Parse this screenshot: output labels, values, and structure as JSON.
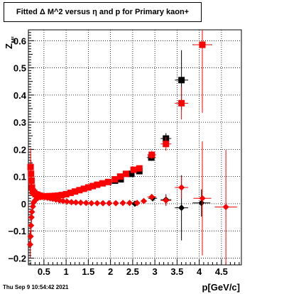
{
  "title": "Fitted Δ M^2 versus η and p for Primary kaon+",
  "timestamp": "Thu Sep  9 10:54:42 2021",
  "chart_data": {
    "type": "scatter",
    "xlabel": "p[GeV/c]",
    "ylabel": "Z_{M^{2}}",
    "xlim": [
      0.15,
      4.95
    ],
    "ylim": [
      -0.225,
      0.64
    ],
    "grid": true,
    "x_ticks": [
      0.5,
      1,
      1.5,
      2,
      2.5,
      3,
      3.5,
      4,
      4.5
    ],
    "x_tick_labels": [
      "0.5",
      "1",
      "1.5",
      "2",
      "2.5",
      "3",
      "3.5",
      "4",
      "4.5"
    ],
    "y_ticks": [
      -0.2,
      -0.1,
      0,
      0.1,
      0.2,
      0.3,
      0.4,
      0.5,
      0.6
    ],
    "y_tick_labels": [
      "−0.2",
      "−0.1",
      "0",
      "0.1",
      "0.2",
      "0.3",
      "0.4",
      "0.5",
      "0.6"
    ],
    "colors": {
      "red": "#ff0000",
      "black": "#000000"
    },
    "series": [
      {
        "color": "black",
        "marker": "square",
        "points": [
          {
            "x": 2.1,
            "y": 0.085,
            "ex": 0.05,
            "ey": 0.004
          },
          {
            "x": 2.23,
            "y": 0.09,
            "ex": 0.05,
            "ey": 0.004
          },
          {
            "x": 2.47,
            "y": 0.11,
            "ex": 0.06,
            "ey": 0.006
          },
          {
            "x": 2.65,
            "y": 0.12,
            "ex": 0.07,
            "ey": 0.008
          },
          {
            "x": 2.92,
            "y": 0.17,
            "ex": 0.1,
            "ey": 0.012
          },
          {
            "x": 3.25,
            "y": 0.24,
            "ex": 0.12,
            "ey": 0.02
          },
          {
            "x": 3.6,
            "y": 0.455,
            "ex": 0.15,
            "ey": 0.11
          },
          {
            "x": 4.07,
            "y": 0.585,
            "ex": 0.22,
            "ey": 0.04
          }
        ]
      },
      {
        "color": "red",
        "marker": "square",
        "points": [
          {
            "x": 0.2,
            "y": 0.135,
            "ex": 0.02,
            "ey": 0.07
          },
          {
            "x": 0.21,
            "y": 0.11,
            "ex": 0.02,
            "ey": 0.05
          },
          {
            "x": 0.22,
            "y": 0.085,
            "ex": 0.02,
            "ey": 0.03
          },
          {
            "x": 0.23,
            "y": 0.06,
            "ex": 0.02,
            "ey": 0.015
          },
          {
            "x": 0.25,
            "y": 0.045,
            "ex": 0.02,
            "ey": 0.01
          },
          {
            "x": 0.28,
            "y": 0.04,
            "ex": 0.02,
            "ey": 0.008
          },
          {
            "x": 0.31,
            "y": 0.035,
            "ex": 0.02,
            "ey": 0.006
          },
          {
            "x": 0.35,
            "y": 0.033,
            "ex": 0.02,
            "ey": 0.005
          },
          {
            "x": 0.4,
            "y": 0.03,
            "ex": 0.025,
            "ey": 0.004
          },
          {
            "x": 0.45,
            "y": 0.028,
            "ex": 0.025,
            "ey": 0.004
          },
          {
            "x": 0.5,
            "y": 0.027,
            "ex": 0.025,
            "ey": 0.003
          },
          {
            "x": 0.56,
            "y": 0.027,
            "ex": 0.03,
            "ey": 0.003
          },
          {
            "x": 0.62,
            "y": 0.028,
            "ex": 0.03,
            "ey": 0.003
          },
          {
            "x": 0.68,
            "y": 0.028,
            "ex": 0.03,
            "ey": 0.003
          },
          {
            "x": 0.75,
            "y": 0.029,
            "ex": 0.035,
            "ey": 0.003
          },
          {
            "x": 0.82,
            "y": 0.03,
            "ex": 0.035,
            "ey": 0.003
          },
          {
            "x": 0.9,
            "y": 0.032,
            "ex": 0.04,
            "ey": 0.003
          },
          {
            "x": 1.0,
            "y": 0.035,
            "ex": 0.04,
            "ey": 0.003
          },
          {
            "x": 1.1,
            "y": 0.04,
            "ex": 0.04,
            "ey": 0.003
          },
          {
            "x": 1.2,
            "y": 0.045,
            "ex": 0.045,
            "ey": 0.003
          },
          {
            "x": 1.3,
            "y": 0.05,
            "ex": 0.045,
            "ey": 0.003
          },
          {
            "x": 1.4,
            "y": 0.055,
            "ex": 0.045,
            "ey": 0.003
          },
          {
            "x": 1.5,
            "y": 0.06,
            "ex": 0.05,
            "ey": 0.004
          },
          {
            "x": 1.6,
            "y": 0.065,
            "ex": 0.05,
            "ey": 0.004
          },
          {
            "x": 1.7,
            "y": 0.07,
            "ex": 0.05,
            "ey": 0.004
          },
          {
            "x": 1.82,
            "y": 0.075,
            "ex": 0.05,
            "ey": 0.005
          },
          {
            "x": 1.95,
            "y": 0.08,
            "ex": 0.05,
            "ey": 0.005
          },
          {
            "x": 2.1,
            "y": 0.09,
            "ex": 0.05,
            "ey": 0.006
          },
          {
            "x": 2.22,
            "y": 0.1,
            "ex": 0.05,
            "ey": 0.007
          },
          {
            "x": 2.35,
            "y": 0.11,
            "ex": 0.06,
            "ey": 0.008
          },
          {
            "x": 2.52,
            "y": 0.125,
            "ex": 0.06,
            "ey": 0.009
          },
          {
            "x": 2.65,
            "y": 0.13,
            "ex": 0.07,
            "ey": 0.01
          },
          {
            "x": 2.93,
            "y": 0.18,
            "ex": 0.1,
            "ey": 0.015
          },
          {
            "x": 3.25,
            "y": 0.22,
            "ex": 0.12,
            "ey": 0.025
          },
          {
            "x": 3.6,
            "y": 0.37,
            "ex": 0.15,
            "ey": 0.06
          },
          {
            "x": 4.07,
            "y": 0.585,
            "ex": 0.2,
            "ey": 0.25
          }
        ]
      },
      {
        "color": "black",
        "marker": "diamond",
        "points": [
          {
            "x": 2.55,
            "y": 0.0,
            "ex": 0.06,
            "ey": 0.004
          },
          {
            "x": 2.95,
            "y": 0.02,
            "ex": 0.1,
            "ey": 0.01
          },
          {
            "x": 3.25,
            "y": 0.015,
            "ex": 0.12,
            "ey": 0.02
          },
          {
            "x": 3.6,
            "y": -0.015,
            "ex": 0.15,
            "ey": 0.12
          },
          {
            "x": 4.05,
            "y": 0.003,
            "ex": 0.2,
            "ey": 0.05
          }
        ]
      },
      {
        "color": "red",
        "marker": "diamond",
        "points": [
          {
            "x": 0.19,
            "y": -0.15,
            "ex": 0.02,
            "ey": 0.05
          },
          {
            "x": 0.2,
            "y": -0.12,
            "ex": 0.02,
            "ey": 0.04
          },
          {
            "x": 0.21,
            "y": -0.08,
            "ex": 0.02,
            "ey": 0.03
          },
          {
            "x": 0.22,
            "y": -0.05,
            "ex": 0.02,
            "ey": 0.02
          },
          {
            "x": 0.23,
            "y": -0.03,
            "ex": 0.02,
            "ey": 0.015
          },
          {
            "x": 0.25,
            "y": -0.01,
            "ex": 0.02,
            "ey": 0.01
          },
          {
            "x": 0.27,
            "y": 0.005,
            "ex": 0.02,
            "ey": 0.008
          },
          {
            "x": 0.3,
            "y": 0.012,
            "ex": 0.02,
            "ey": 0.006
          },
          {
            "x": 0.33,
            "y": 0.018,
            "ex": 0.02,
            "ey": 0.005
          },
          {
            "x": 0.37,
            "y": 0.022,
            "ex": 0.02,
            "ey": 0.004
          },
          {
            "x": 0.42,
            "y": 0.024,
            "ex": 0.025,
            "ey": 0.004
          },
          {
            "x": 0.47,
            "y": 0.025,
            "ex": 0.025,
            "ey": 0.003
          },
          {
            "x": 0.52,
            "y": 0.024,
            "ex": 0.025,
            "ey": 0.003
          },
          {
            "x": 0.58,
            "y": 0.022,
            "ex": 0.03,
            "ey": 0.003
          },
          {
            "x": 0.64,
            "y": 0.02,
            "ex": 0.03,
            "ey": 0.003
          },
          {
            "x": 0.7,
            "y": 0.018,
            "ex": 0.03,
            "ey": 0.003
          },
          {
            "x": 0.77,
            "y": 0.015,
            "ex": 0.035,
            "ey": 0.003
          },
          {
            "x": 0.85,
            "y": 0.012,
            "ex": 0.035,
            "ey": 0.003
          },
          {
            "x": 0.93,
            "y": 0.01,
            "ex": 0.04,
            "ey": 0.003
          },
          {
            "x": 1.02,
            "y": 0.008,
            "ex": 0.04,
            "ey": 0.003
          },
          {
            "x": 1.12,
            "y": 0.006,
            "ex": 0.04,
            "ey": 0.003
          },
          {
            "x": 1.22,
            "y": 0.005,
            "ex": 0.045,
            "ey": 0.003
          },
          {
            "x": 1.33,
            "y": 0.004,
            "ex": 0.045,
            "ey": 0.003
          },
          {
            "x": 1.45,
            "y": 0.003,
            "ex": 0.045,
            "ey": 0.003
          },
          {
            "x": 1.57,
            "y": 0.002,
            "ex": 0.05,
            "ey": 0.003
          },
          {
            "x": 1.7,
            "y": 0.002,
            "ex": 0.05,
            "ey": 0.003
          },
          {
            "x": 1.83,
            "y": 0.002,
            "ex": 0.05,
            "ey": 0.004
          },
          {
            "x": 1.97,
            "y": 0.002,
            "ex": 0.05,
            "ey": 0.004
          },
          {
            "x": 2.12,
            "y": 0.002,
            "ex": 0.05,
            "ey": 0.004
          },
          {
            "x": 2.28,
            "y": 0.003,
            "ex": 0.05,
            "ey": 0.005
          },
          {
            "x": 2.43,
            "y": 0.003,
            "ex": 0.06,
            "ey": 0.005
          },
          {
            "x": 2.6,
            "y": 0.003,
            "ex": 0.06,
            "ey": 0.006
          },
          {
            "x": 2.75,
            "y": 0.01,
            "ex": 0.07,
            "ey": 0.008
          },
          {
            "x": 2.93,
            "y": 0.025,
            "ex": 0.1,
            "ey": 0.01
          },
          {
            "x": 3.25,
            "y": 0.012,
            "ex": 0.12,
            "ey": 0.02
          },
          {
            "x": 3.6,
            "y": 0.06,
            "ex": 0.15,
            "ey": 0.04
          },
          {
            "x": 4.07,
            "y": 0.02,
            "ex": 0.2,
            "ey": 0.21
          },
          {
            "x": 4.6,
            "y": -0.012,
            "ex": 0.25,
            "ey": 0.21
          }
        ]
      }
    ]
  }
}
